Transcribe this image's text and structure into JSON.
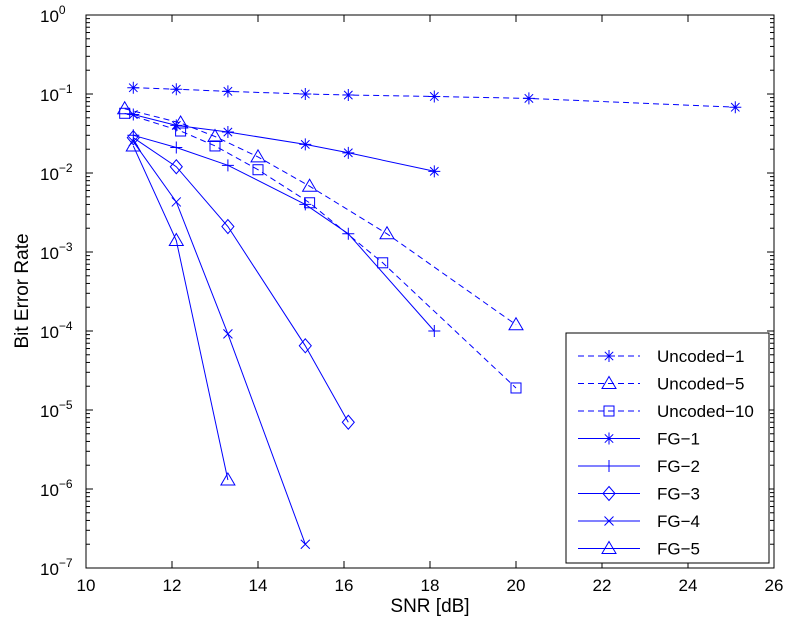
{
  "chart_data": {
    "type": "line",
    "title": "",
    "xlabel": "SNR [dB]",
    "ylabel": "Bit Error Rate",
    "xlim": [
      10,
      26
    ],
    "ylim": [
      1e-07,
      1
    ],
    "yscale": "log",
    "grid": false,
    "legend_position": "bottom-right",
    "line_color": "#0000ff",
    "x_ticks": [
      10,
      12,
      14,
      16,
      18,
      20,
      22,
      24,
      26
    ],
    "x_tick_labels": [
      "10",
      "12",
      "14",
      "16",
      "18",
      "20",
      "22",
      "24",
      "26"
    ],
    "y_ticks": [
      {
        "value": 1e-07,
        "base": "10",
        "exp": "−7"
      },
      {
        "value": 1e-06,
        "base": "10",
        "exp": "−6"
      },
      {
        "value": 1e-05,
        "base": "10",
        "exp": "−5"
      },
      {
        "value": 0.0001,
        "base": "10",
        "exp": "−4"
      },
      {
        "value": 0.001,
        "base": "10",
        "exp": "−3"
      },
      {
        "value": 0.01,
        "base": "10",
        "exp": "−2"
      },
      {
        "value": 0.1,
        "base": "10",
        "exp": "−1"
      },
      {
        "value": 1,
        "base": "10",
        "exp": "0"
      }
    ],
    "series": [
      {
        "name": "Uncoded−1",
        "style": "dashed",
        "marker": "asterisk",
        "x": [
          11.1,
          12.1,
          13.3,
          15.1,
          16.1,
          18.1,
          20.3,
          25.1
        ],
        "y": [
          0.12,
          0.115,
          0.108,
          0.1,
          0.097,
          0.093,
          0.088,
          0.068
        ]
      },
      {
        "name": "Uncoded−5",
        "style": "dashed",
        "marker": "triangle",
        "x": [
          10.9,
          12.2,
          13.0,
          14.0,
          15.2,
          17.0,
          20.0
        ],
        "y": [
          0.065,
          0.043,
          0.029,
          0.016,
          0.0068,
          0.0017,
          0.00012
        ]
      },
      {
        "name": "Uncoded−10",
        "style": "dashed",
        "marker": "square",
        "x": [
          10.9,
          12.2,
          13.0,
          14.0,
          15.2,
          16.9,
          20.0
        ],
        "y": [
          0.057,
          0.034,
          0.022,
          0.011,
          0.0042,
          0.00073,
          1.9e-05
        ]
      },
      {
        "name": "FG−1",
        "style": "solid",
        "marker": "asterisk",
        "x": [
          11.1,
          12.1,
          13.3,
          15.1,
          16.1,
          18.1
        ],
        "y": [
          0.055,
          0.04,
          0.033,
          0.023,
          0.018,
          0.0105
        ]
      },
      {
        "name": "FG−2",
        "style": "solid",
        "marker": "plus",
        "x": [
          11.1,
          12.1,
          13.3,
          15.1,
          16.1,
          18.1
        ],
        "y": [
          0.03,
          0.021,
          0.0125,
          0.004,
          0.0017,
          0.0001
        ]
      },
      {
        "name": "FG−3",
        "style": "solid",
        "marker": "diamond",
        "x": [
          11.1,
          12.1,
          13.3,
          15.1,
          16.1
        ],
        "y": [
          0.028,
          0.012,
          0.0021,
          6.5e-05,
          7e-06
        ]
      },
      {
        "name": "FG−4",
        "style": "solid",
        "marker": "x",
        "x": [
          11.1,
          12.1,
          13.3,
          15.1
        ],
        "y": [
          0.025,
          0.0043,
          9.2e-05,
          2e-07
        ]
      },
      {
        "name": "FG−5",
        "style": "solid",
        "marker": "triangle",
        "x": [
          11.1,
          12.1,
          13.3
        ],
        "y": [
          0.022,
          0.0014,
          1.3e-06
        ]
      }
    ]
  }
}
